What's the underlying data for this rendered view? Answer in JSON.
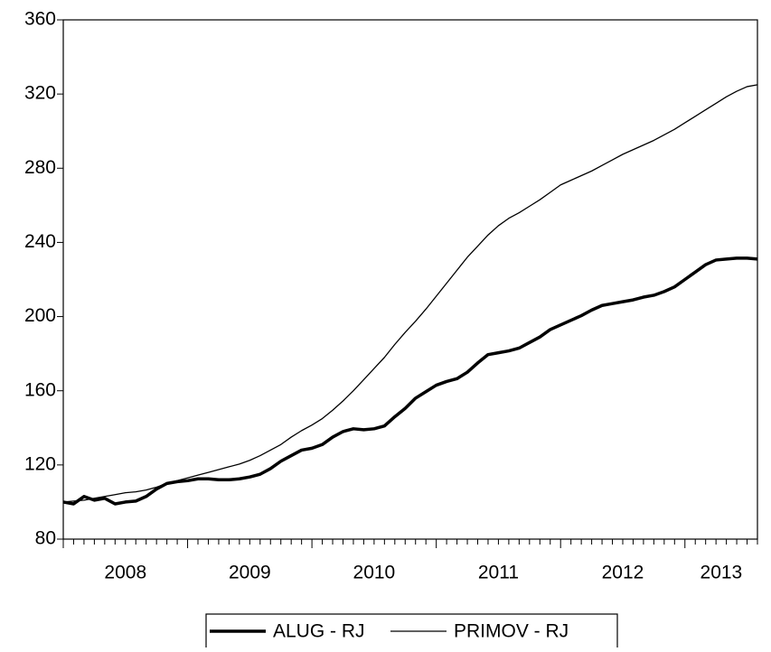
{
  "chart_data": {
    "type": "line",
    "categories": [
      "2008",
      null,
      null,
      null,
      null,
      null,
      null,
      null,
      null,
      null,
      null,
      null,
      "2009",
      null,
      null,
      null,
      null,
      null,
      null,
      null,
      null,
      null,
      null,
      null,
      "2010",
      null,
      null,
      null,
      null,
      null,
      null,
      null,
      null,
      null,
      null,
      null,
      "2011",
      null,
      null,
      null,
      null,
      null,
      null,
      null,
      null,
      null,
      null,
      null,
      "2012",
      null,
      null,
      null,
      null,
      null,
      null,
      null,
      null,
      null,
      null,
      null,
      "2013",
      null,
      null,
      null,
      null,
      null,
      null,
      null
    ],
    "series": [
      {
        "name": "ALUG - RJ",
        "color": "#000000",
        "width": 3.5,
        "values": [
          100,
          99,
          103,
          101,
          102,
          99,
          100,
          100.5,
          103,
          107,
          110,
          111,
          111.5,
          112.5,
          112.5,
          112,
          112,
          112.5,
          113.5,
          115,
          118,
          122,
          125,
          128,
          129,
          131,
          135,
          138,
          139.5,
          139,
          139.5,
          141,
          146,
          150.5,
          156,
          159.5,
          163,
          165,
          166.5,
          170,
          175,
          179.5,
          180.5,
          181.5,
          183,
          186,
          189,
          193,
          195.5,
          198,
          200.5,
          203.5,
          206,
          207,
          208,
          209,
          210.5,
          211.5,
          213.5,
          216,
          220,
          224,
          228,
          230.5,
          231,
          231.5,
          231.5,
          231
        ]
      },
      {
        "name": "PRIMOV - RJ",
        "color": "#000000",
        "width": 1.3,
        "values": [
          100,
          100.5,
          101,
          102,
          103,
          104,
          105,
          105.5,
          106.5,
          108,
          110,
          111.5,
          113,
          114.5,
          116,
          117.5,
          119,
          120.5,
          122.5,
          125,
          128,
          131,
          135,
          138.5,
          141.5,
          145,
          149.5,
          154.5,
          160,
          166,
          172,
          178,
          185,
          191.5,
          197.5,
          204,
          211,
          218,
          225,
          232,
          238,
          244,
          249,
          253,
          256,
          259.5,
          263,
          267,
          271,
          273.5,
          276,
          278.5,
          281.5,
          284.5,
          287.5,
          290,
          292.5,
          295,
          298,
          301,
          304.5,
          308,
          311.5,
          315,
          318.5,
          321.5,
          324,
          325
        ]
      }
    ],
    "ylim": [
      80,
      360
    ],
    "yticks": [
      80,
      120,
      160,
      200,
      240,
      280,
      320,
      360
    ],
    "legend": "bottom"
  }
}
